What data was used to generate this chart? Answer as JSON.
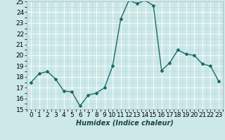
{
  "x": [
    0,
    1,
    2,
    3,
    4,
    5,
    6,
    7,
    8,
    9,
    10,
    11,
    12,
    13,
    14,
    15,
    16,
    17,
    18,
    19,
    20,
    21,
    22,
    23
  ],
  "y": [
    17.5,
    18.3,
    18.5,
    17.8,
    16.7,
    16.6,
    15.3,
    16.3,
    16.5,
    17.0,
    19.0,
    23.4,
    25.1,
    24.8,
    25.1,
    24.6,
    18.6,
    19.3,
    20.5,
    20.1,
    20.0,
    19.2,
    19.0,
    17.6
  ],
  "line_color": "#1a6b6b",
  "marker": "D",
  "marker_size": 2,
  "linewidth": 1.0,
  "bg_color": "#cce8e8",
  "grid_major_color": "#ffffff",
  "grid_minor_color": "#b8d8d8",
  "xlabel": "Humidex (Indice chaleur)",
  "ylim": [
    15,
    25
  ],
  "xlim": [
    -0.5,
    23.5
  ],
  "yticks": [
    15,
    16,
    17,
    18,
    19,
    20,
    21,
    22,
    23,
    24,
    25
  ],
  "xticks": [
    0,
    1,
    2,
    3,
    4,
    5,
    6,
    7,
    8,
    9,
    10,
    11,
    12,
    13,
    14,
    15,
    16,
    17,
    18,
    19,
    20,
    21,
    22,
    23
  ],
  "xlabel_fontsize": 7,
  "tick_fontsize": 6.5
}
